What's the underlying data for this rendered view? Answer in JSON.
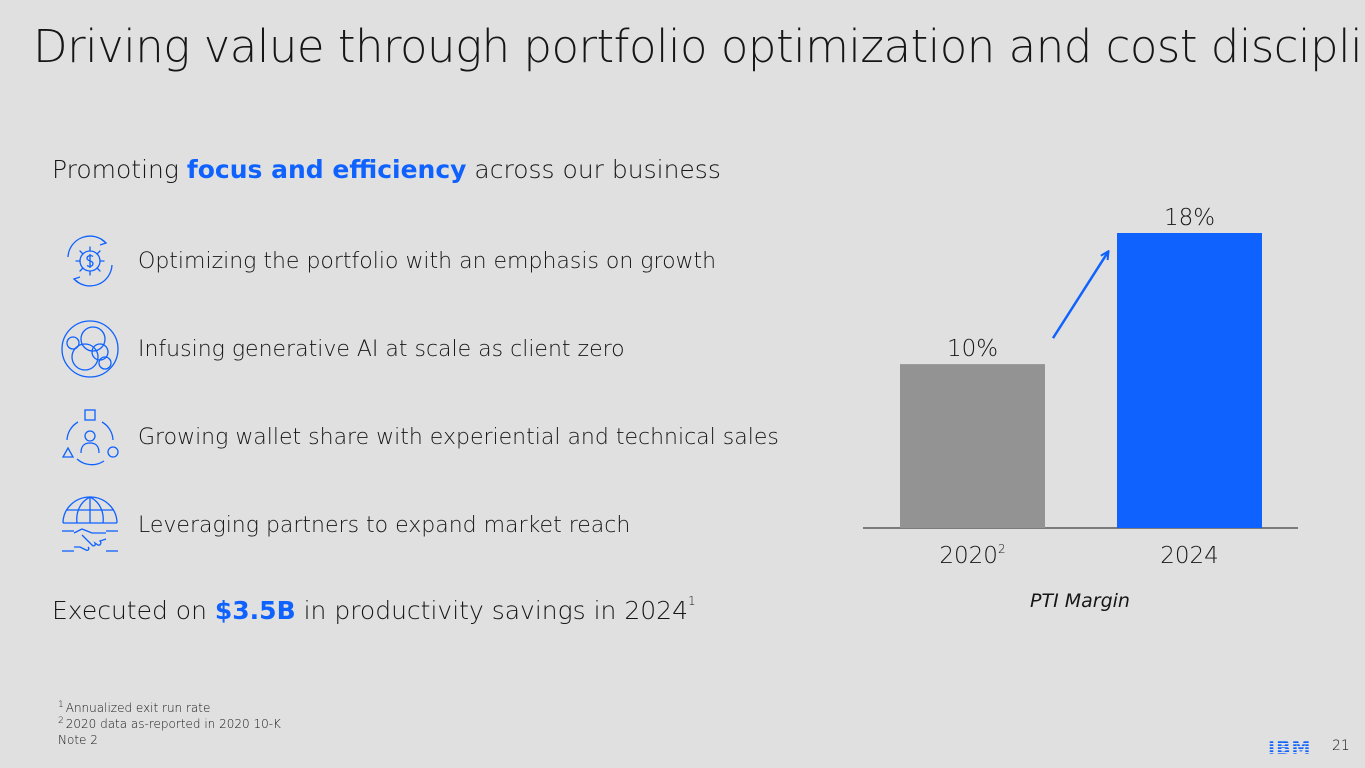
{
  "title": "Driving value through portfolio optimization and cost discipline",
  "subhead": {
    "prefix": "Promoting ",
    "highlight": "focus and efficiency",
    "suffix": " across our business"
  },
  "items": [
    {
      "label": "Optimizing the portfolio with an emphasis on growth",
      "icon": "cycle-dollar-gear-icon"
    },
    {
      "label": "Infusing generative AI at scale as client zero",
      "icon": "ai-circles-icon"
    },
    {
      "label": "Growing wallet share with experiential and technical sales",
      "icon": "user-shapes-icon"
    },
    {
      "label": "Leveraging partners to expand market reach",
      "icon": "globe-handshake-icon"
    }
  ],
  "executed": {
    "prefix": "Executed on ",
    "highlight": "$3.5B",
    "suffix": " in productivity savings in 2024",
    "sup": "1"
  },
  "footnotes": [
    {
      "sup": "1",
      "text": "Annualized exit run rate"
    },
    {
      "sup": "2",
      "text": "2020 data as-reported in 2020 10-K"
    },
    {
      "sup": "",
      "text": "Note 2"
    }
  ],
  "chart_data": {
    "type": "bar",
    "categories": [
      "2020",
      "2024"
    ],
    "category_sups": [
      "2",
      ""
    ],
    "values": [
      10,
      18
    ],
    "value_labels": [
      "10%",
      "18%"
    ],
    "colors": [
      "#939393",
      "#0f62fe"
    ],
    "xlabel": "PTI Margin",
    "ylim": [
      0,
      18
    ],
    "annotation": "arrow-up-right"
  },
  "colors": {
    "accent": "#0f62fe",
    "bar_2020": "#939393",
    "background": "#e0e0e0"
  },
  "logo": "IBM",
  "page_number": "21"
}
